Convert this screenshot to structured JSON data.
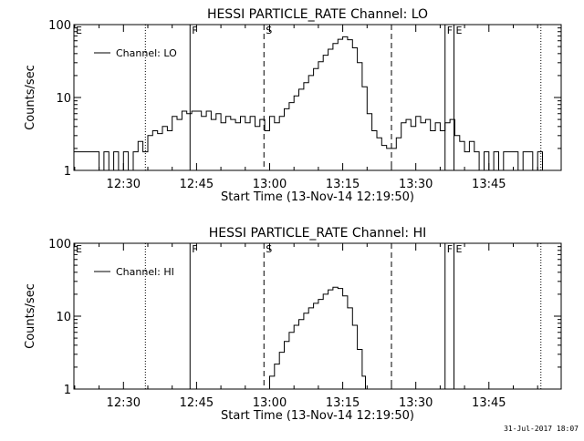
{
  "chart_data": [
    {
      "type": "line",
      "title": "HESSI PARTICLE_RATE Channel: LO",
      "xlabel": "Start Time (13-Nov-14 12:19:50)",
      "ylabel": "Counts/sec",
      "yscale": "log",
      "xlim": [
        "12:19:50",
        "13:59:50"
      ],
      "ylim": [
        1,
        100
      ],
      "x_ticks": [
        "12:30",
        "12:45",
        "13:00",
        "13:15",
        "13:30",
        "13:45"
      ],
      "y_ticks": [
        "1",
        "10",
        "100"
      ],
      "legend": {
        "label": "Channel: LO",
        "placement": "upper-left"
      },
      "markers": [
        {
          "time": "12:19:50",
          "label": "E",
          "style": "solid"
        },
        {
          "time": "12:34:30",
          "label": "",
          "style": "dotted"
        },
        {
          "time": "12:43:40",
          "label": "F",
          "style": "solid"
        },
        {
          "time": "12:58:50",
          "label": "S",
          "style": "dashed"
        },
        {
          "time": "13:25:00",
          "label": "",
          "style": "dashed"
        },
        {
          "time": "13:36:00",
          "label": "F",
          "style": "solid"
        },
        {
          "time": "13:37:50",
          "label": "E",
          "style": "solid"
        },
        {
          "time": "13:55:40",
          "label": "",
          "style": "dotted"
        }
      ],
      "series": [
        {
          "name": "Channel: LO",
          "points": [
            [
              "12:19:50",
              1.8
            ],
            [
              "12:22:00",
              1.8
            ],
            [
              "12:24:00",
              1.8
            ],
            [
              "12:25:00",
              1.0
            ],
            [
              "12:26:00",
              1.8
            ],
            [
              "12:27:00",
              1.0
            ],
            [
              "12:28:00",
              1.8
            ],
            [
              "12:29:00",
              1.0
            ],
            [
              "12:30:00",
              1.8
            ],
            [
              "12:31:00",
              1.0
            ],
            [
              "12:32:00",
              1.8
            ],
            [
              "12:33:00",
              2.5
            ],
            [
              "12:34:00",
              1.8
            ],
            [
              "12:35:00",
              3.0
            ],
            [
              "12:36:00",
              3.5
            ],
            [
              "12:37:00",
              3.2
            ],
            [
              "12:38:00",
              4.0
            ],
            [
              "12:39:00",
              3.5
            ],
            [
              "12:40:00",
              5.5
            ],
            [
              "12:41:00",
              5.0
            ],
            [
              "12:42:00",
              6.5
            ],
            [
              "12:43:00",
              6.0
            ],
            [
              "12:44:00",
              6.5
            ],
            [
              "12:45:00",
              6.5
            ],
            [
              "12:46:00",
              5.5
            ],
            [
              "12:47:00",
              6.5
            ],
            [
              "12:48:00",
              5.0
            ],
            [
              "12:49:00",
              6.0
            ],
            [
              "12:50:00",
              4.5
            ],
            [
              "12:51:00",
              5.5
            ],
            [
              "12:52:00",
              5.0
            ],
            [
              "12:53:00",
              4.5
            ],
            [
              "12:54:00",
              5.5
            ],
            [
              "12:55:00",
              4.5
            ],
            [
              "12:56:00",
              5.5
            ],
            [
              "12:57:00",
              4.0
            ],
            [
              "12:58:00",
              5.0
            ],
            [
              "12:59:00",
              3.5
            ],
            [
              "13:00:00",
              5.5
            ],
            [
              "13:01:00",
              4.5
            ],
            [
              "13:02:00",
              5.5
            ],
            [
              "13:03:00",
              7.0
            ],
            [
              "13:04:00",
              8.5
            ],
            [
              "13:05:00",
              10.5
            ],
            [
              "13:06:00",
              13.0
            ],
            [
              "13:07:00",
              16.0
            ],
            [
              "13:08:00",
              20.0
            ],
            [
              "13:09:00",
              25.0
            ],
            [
              "13:10:00",
              31.0
            ],
            [
              "13:11:00",
              38.0
            ],
            [
              "13:12:00",
              46.0
            ],
            [
              "13:13:00",
              55.0
            ],
            [
              "13:14:00",
              63.0
            ],
            [
              "13:15:00",
              68.0
            ],
            [
              "13:16:00",
              62.0
            ],
            [
              "13:17:00",
              48.0
            ],
            [
              "13:18:00",
              30.0
            ],
            [
              "13:19:00",
              14.0
            ],
            [
              "13:20:00",
              6.0
            ],
            [
              "13:21:00",
              3.5
            ],
            [
              "13:22:00",
              2.8
            ],
            [
              "13:23:00",
              2.2
            ],
            [
              "13:24:00",
              2.0
            ],
            [
              "13:25:00",
              2.0
            ],
            [
              "13:26:00",
              2.8
            ],
            [
              "13:27:00",
              4.5
            ],
            [
              "13:28:00",
              5.0
            ],
            [
              "13:29:00",
              4.0
            ],
            [
              "13:30:00",
              5.5
            ],
            [
              "13:31:00",
              4.5
            ],
            [
              "13:32:00",
              5.0
            ],
            [
              "13:33:00",
              3.5
            ],
            [
              "13:34:00",
              4.5
            ],
            [
              "13:35:00",
              3.5
            ],
            [
              "13:36:00",
              4.5
            ],
            [
              "13:37:00",
              5.0
            ],
            [
              "13:38:00",
              3.0
            ],
            [
              "13:39:00",
              2.5
            ],
            [
              "13:40:00",
              1.8
            ],
            [
              "13:41:00",
              2.5
            ],
            [
              "13:42:00",
              1.8
            ],
            [
              "13:43:00",
              1.0
            ],
            [
              "13:44:00",
              1.8
            ],
            [
              "13:45:00",
              1.0
            ],
            [
              "13:46:00",
              1.8
            ],
            [
              "13:47:00",
              1.0
            ],
            [
              "13:48:00",
              1.8
            ],
            [
              "13:50:00",
              1.8
            ],
            [
              "13:51:00",
              1.0
            ],
            [
              "13:52:00",
              1.8
            ],
            [
              "13:54:00",
              1.0
            ],
            [
              "13:55:00",
              1.8
            ],
            [
              "13:56:00",
              1.0
            ]
          ]
        }
      ]
    },
    {
      "type": "line",
      "title": "HESSI PARTICLE_RATE Channel: HI",
      "xlabel": "Start Time (13-Nov-14 12:19:50)",
      "ylabel": "Counts/sec",
      "yscale": "log",
      "xlim": [
        "12:19:50",
        "13:59:50"
      ],
      "ylim": [
        1,
        100
      ],
      "x_ticks": [
        "12:30",
        "12:45",
        "13:00",
        "13:15",
        "13:30",
        "13:45"
      ],
      "y_ticks": [
        "1",
        "10",
        "100"
      ],
      "legend": {
        "label": "Channel: HI",
        "placement": "upper-left"
      },
      "markers": [
        {
          "time": "12:19:50",
          "label": "E",
          "style": "solid"
        },
        {
          "time": "12:34:30",
          "label": "",
          "style": "dotted"
        },
        {
          "time": "12:43:40",
          "label": "F",
          "style": "solid"
        },
        {
          "time": "12:58:50",
          "label": "S",
          "style": "dashed"
        },
        {
          "time": "13:25:00",
          "label": "",
          "style": "dashed"
        },
        {
          "time": "13:36:00",
          "label": "F",
          "style": "solid"
        },
        {
          "time": "13:37:50",
          "label": "E",
          "style": "solid"
        },
        {
          "time": "13:55:40",
          "label": "",
          "style": "dotted"
        }
      ],
      "series": [
        {
          "name": "Channel: HI",
          "points": [
            [
              "12:59:00",
              1.0
            ],
            [
              "13:00:00",
              1.5
            ],
            [
              "13:01:00",
              2.2
            ],
            [
              "13:02:00",
              3.2
            ],
            [
              "13:03:00",
              4.5
            ],
            [
              "13:04:00",
              6.0
            ],
            [
              "13:05:00",
              7.5
            ],
            [
              "13:06:00",
              9.0
            ],
            [
              "13:07:00",
              11.0
            ],
            [
              "13:08:00",
              13.0
            ],
            [
              "13:09:00",
              15.0
            ],
            [
              "13:10:00",
              17.0
            ],
            [
              "13:11:00",
              20.0
            ],
            [
              "13:12:00",
              23.0
            ],
            [
              "13:13:00",
              25.0
            ],
            [
              "13:14:00",
              24.0
            ],
            [
              "13:15:00",
              19.0
            ],
            [
              "13:16:00",
              13.0
            ],
            [
              "13:17:00",
              7.5
            ],
            [
              "13:18:00",
              3.5
            ],
            [
              "13:19:00",
              1.5
            ],
            [
              "13:19:40",
              1.0
            ]
          ]
        }
      ]
    }
  ],
  "footer": {
    "timestamp": "31-Jul-2017 18:07"
  }
}
